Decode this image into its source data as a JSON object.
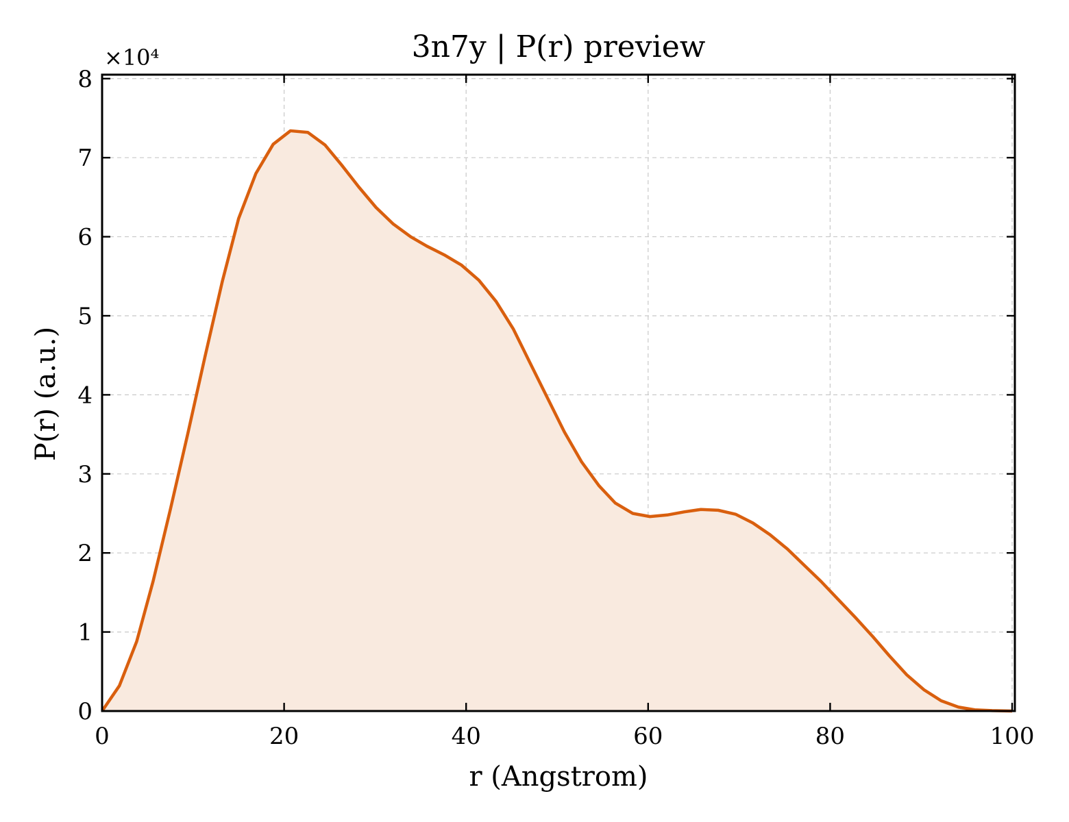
{
  "chart_data": {
    "type": "area",
    "title": "3n7y | P(r) preview",
    "xlabel": "r (Angstrom)",
    "ylabel": "P(r) (a.u.)",
    "y_scale_label": "×10⁴",
    "xlim": [
      0,
      100.3
    ],
    "ylim": [
      0,
      80500
    ],
    "grid": true,
    "x_ticks": [
      0,
      20,
      40,
      60,
      80,
      100
    ],
    "x_tick_labels": [
      "0",
      "20",
      "40",
      "60",
      "80",
      "100"
    ],
    "y_ticks": [
      0,
      10000,
      20000,
      30000,
      40000,
      50000,
      60000,
      70000,
      80000
    ],
    "y_tick_labels": [
      "0",
      "1",
      "2",
      "3",
      "4",
      "5",
      "6",
      "7",
      "8"
    ],
    "colors": {
      "line": "#d95f0e",
      "fill": "#f9eadf"
    },
    "series": [
      {
        "x": [
          0,
          1.9,
          3.8,
          5.6,
          7.5,
          9.4,
          11.3,
          13.2,
          15.0,
          16.9,
          18.8,
          20.7,
          22.6,
          24.5,
          26.3,
          28.2,
          30.1,
          32.0,
          33.9,
          35.7,
          37.6,
          39.5,
          41.4,
          43.3,
          45.2,
          47.0,
          48.9,
          50.8,
          52.7,
          54.6,
          56.4,
          58.3,
          60.2,
          62.1,
          64.0,
          65.8,
          67.7,
          69.6,
          71.5,
          73.4,
          75.3,
          77.1,
          79.0,
          80.9,
          82.8,
          84.7,
          86.5,
          88.4,
          90.3,
          92.2,
          94.1,
          95.9,
          97.8,
          100.0
        ],
        "y": [
          0,
          3200,
          8800,
          16400,
          25500,
          35000,
          44800,
          54300,
          62300,
          68000,
          71700,
          73400,
          73200,
          71600,
          69100,
          66300,
          63700,
          61600,
          60000,
          58800,
          57700,
          56400,
          54500,
          51800,
          48300,
          44100,
          39700,
          35300,
          31500,
          28500,
          26300,
          25000,
          24600,
          24800,
          25200,
          25500,
          25400,
          24900,
          23800,
          22300,
          20500,
          18500,
          16400,
          14100,
          11800,
          9400,
          7000,
          4600,
          2700,
          1300,
          500,
          150,
          50,
          0
        ]
      }
    ]
  }
}
